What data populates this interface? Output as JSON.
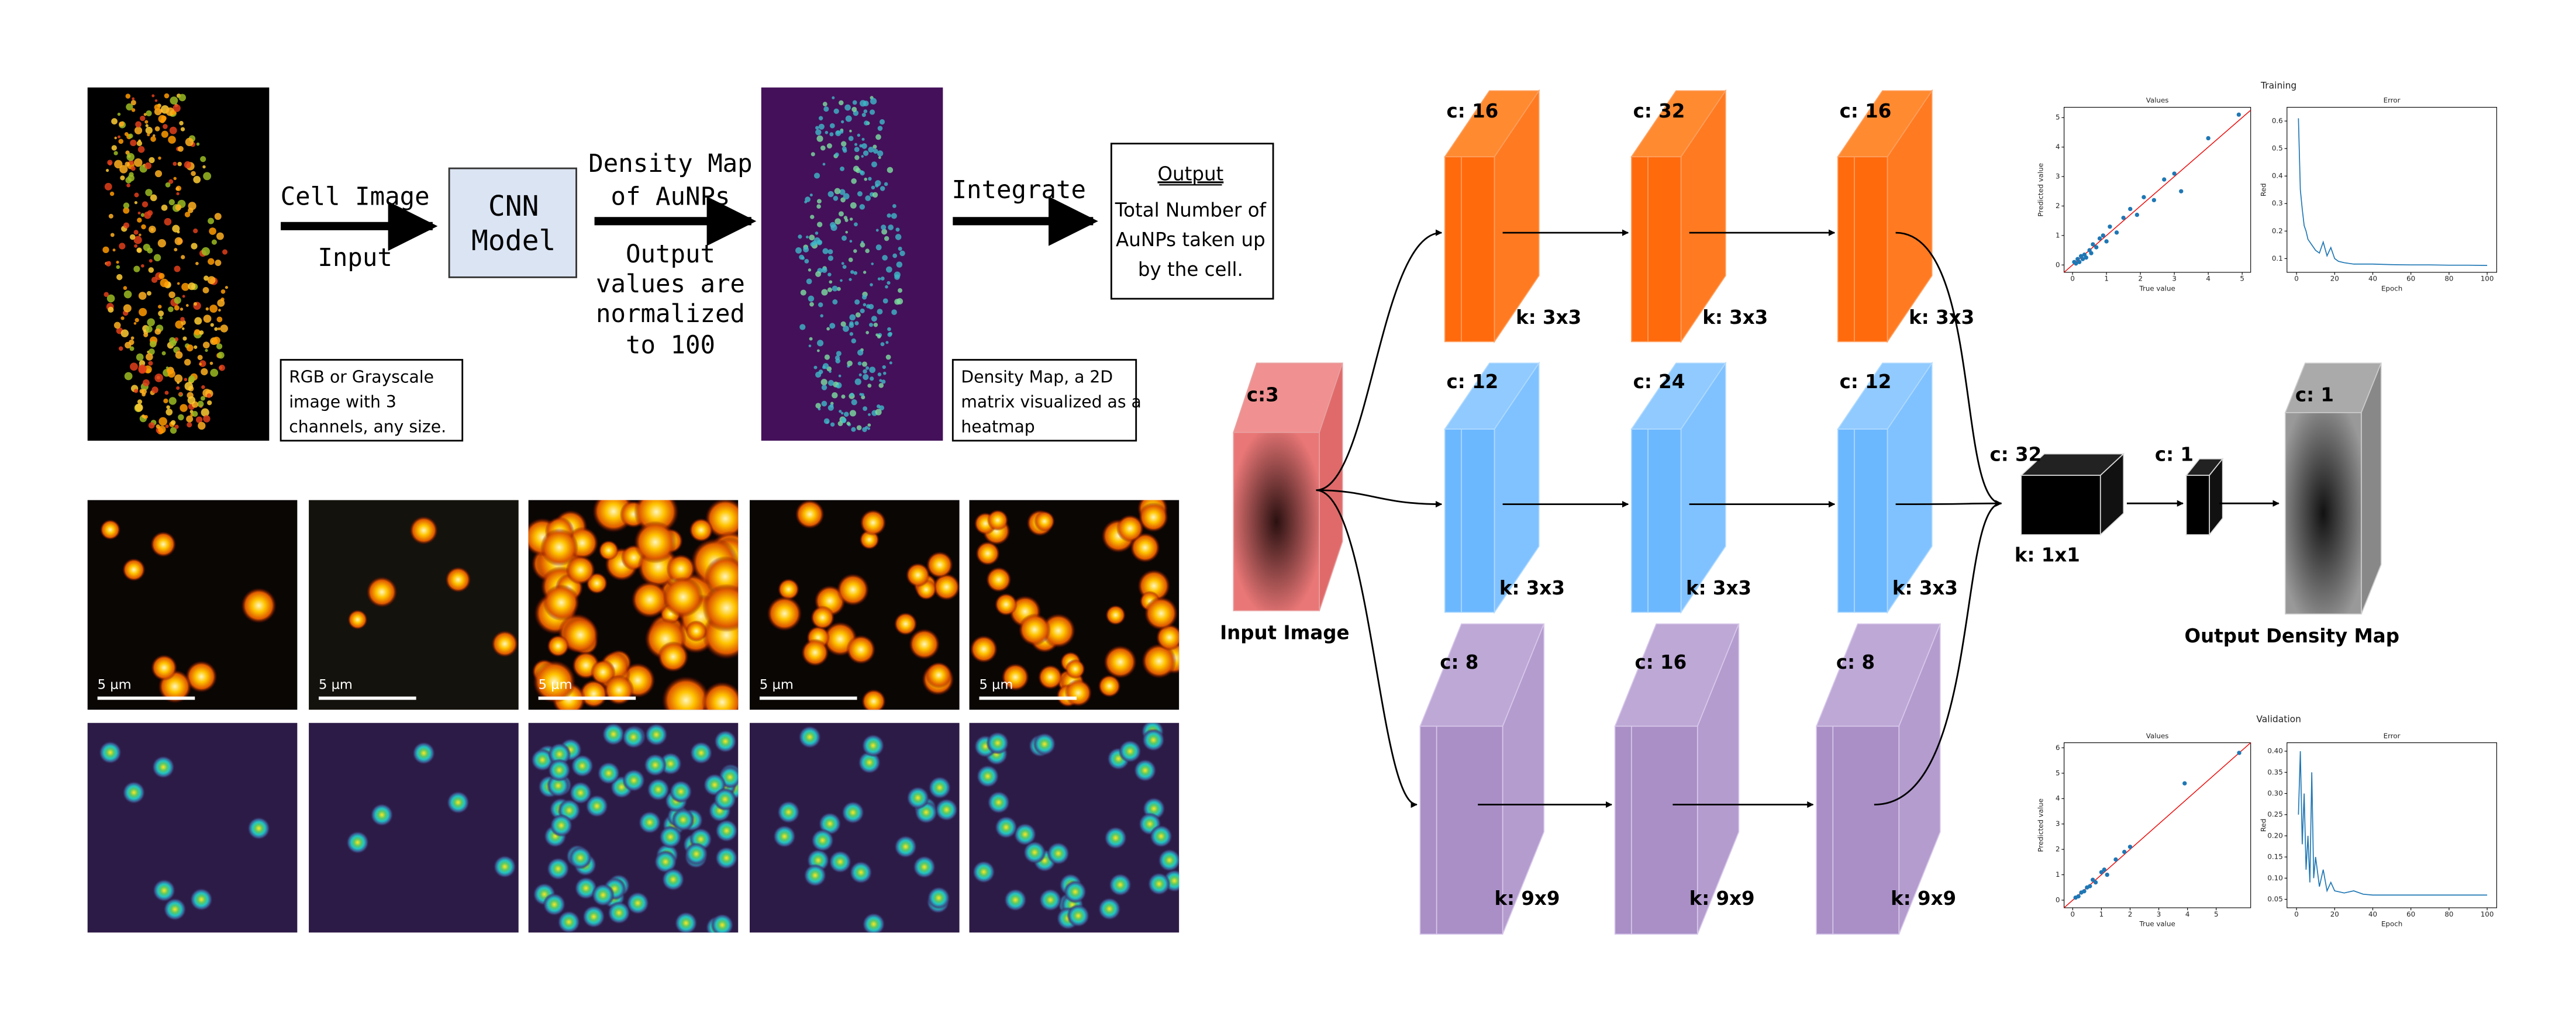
{
  "pipeline": {
    "input_label": "Cell Image",
    "input_sub": "Input",
    "model": [
      "CNN",
      "Model"
    ],
    "density_label": [
      "Density Map",
      "of AuNPs"
    ],
    "density_sub": [
      "Output",
      "values are",
      "normalized",
      "to 100"
    ],
    "integrate": "Integrate",
    "output_title": "Output",
    "output_text": [
      "Total Number of",
      "AuNPs taken up",
      "by the cell."
    ],
    "input_note": [
      "RGB or Grayscale",
      "image with 3",
      "channels, any size."
    ],
    "density_note": [
      "Density Map, a 2D",
      "matrix visualized as a",
      "heatmap"
    ]
  },
  "samples": {
    "scale_bars": [
      "5 µm",
      "5 µm",
      "5 µm",
      "5 µm",
      "5 µm"
    ]
  },
  "network": {
    "input": {
      "channels": "c:3",
      "label": "Input Image"
    },
    "branches": [
      [
        {
          "c": "c: 16",
          "k": "k: 3x3"
        },
        {
          "c": "c: 32",
          "k": "k: 3x3"
        },
        {
          "c": "c: 16",
          "k": "k: 3x3"
        }
      ],
      [
        {
          "c": "c: 12",
          "k": "k: 3x3"
        },
        {
          "c": "c: 24",
          "k": "k: 3x3"
        },
        {
          "c": "c: 12",
          "k": "k: 3x3"
        }
      ],
      [
        {
          "c": "c: 8",
          "k": "k: 9x9"
        },
        {
          "c": "c: 16",
          "k": "k: 9x9"
        },
        {
          "c": "c: 8",
          "k": "k: 9x9"
        }
      ]
    ],
    "merge": {
      "c": "c: 32",
      "k": "k: 1x1"
    },
    "final": {
      "c": "c: 1"
    },
    "output": {
      "c": "c: 1",
      "label": "Output Density Map"
    }
  },
  "plots": [
    {
      "title": "Training",
      "charts": [
        {
          "type": "scatter",
          "title": "Values",
          "x_label": "True value",
          "y_label": "Predicted value",
          "color": "#1f77b4",
          "xlim": [
            -0.25,
            5.25
          ],
          "ylim": [
            -0.25,
            5.35
          ],
          "xticks": [
            0,
            1,
            2,
            3,
            4,
            5
          ],
          "yticks": [
            0,
            1,
            2,
            3,
            4,
            5
          ],
          "x": [
            0.05,
            0.1,
            0.15,
            0.2,
            0.25,
            0.3,
            0.35,
            0.4,
            0.5,
            0.55,
            0.6,
            0.7,
            0.8,
            0.9,
            1.0,
            1.1,
            1.3,
            1.5,
            1.7,
            1.9,
            2.1,
            2.4,
            2.7,
            3.0,
            3.2,
            4.0,
            4.9
          ],
          "values": [
            0.1,
            0.05,
            0.2,
            0.1,
            0.3,
            0.2,
            0.35,
            0.25,
            0.5,
            0.4,
            0.7,
            0.6,
            0.9,
            1.0,
            0.8,
            1.3,
            1.1,
            1.6,
            1.9,
            1.7,
            2.3,
            2.2,
            2.9,
            3.1,
            2.5,
            4.3,
            5.1
          ]
        },
        {
          "type": "line",
          "title": "Error",
          "x_label": "Epoch",
          "y_label": "Red",
          "color": "#1f77b4",
          "xlim": [
            -5,
            105
          ],
          "ylim": [
            0.05,
            0.65
          ],
          "xticks": [
            0,
            20,
            40,
            60,
            80,
            100
          ],
          "yticks": [
            0.1,
            0.2,
            0.3,
            0.4,
            0.5,
            0.6
          ],
          "x": [
            1,
            2,
            3,
            4,
            5,
            6,
            8,
            10,
            12,
            14,
            16,
            18,
            20,
            22,
            25,
            30,
            40,
            50,
            60,
            70,
            80,
            90,
            100
          ],
          "values": [
            0.61,
            0.35,
            0.28,
            0.22,
            0.2,
            0.17,
            0.15,
            0.13,
            0.12,
            0.16,
            0.11,
            0.14,
            0.1,
            0.09,
            0.085,
            0.08,
            0.08,
            0.078,
            0.077,
            0.077,
            0.076,
            0.076,
            0.075
          ]
        }
      ]
    },
    {
      "title": "Validation",
      "charts": [
        {
          "type": "scatter",
          "title": "Values",
          "x_label": "True value",
          "y_label": "Predicted value",
          "color": "#1f77b4",
          "xlim": [
            -0.3,
            6.2
          ],
          "ylim": [
            -0.3,
            6.2
          ],
          "xticks": [
            0,
            1,
            2,
            3,
            4,
            5
          ],
          "yticks": [
            0,
            1,
            2,
            3,
            4,
            5,
            6
          ],
          "x": [
            0.1,
            0.2,
            0.3,
            0.4,
            0.5,
            0.6,
            0.7,
            0.8,
            1.0,
            1.1,
            1.2,
            1.5,
            1.8,
            2.0,
            3.9,
            5.8
          ],
          "values": [
            0.1,
            0.15,
            0.3,
            0.35,
            0.5,
            0.55,
            0.8,
            0.7,
            1.1,
            1.2,
            1.0,
            1.6,
            1.9,
            2.1,
            4.6,
            5.8
          ]
        },
        {
          "type": "line",
          "title": "Error",
          "x_label": "Epoch",
          "y_label": "Red",
          "color": "#1f77b4",
          "xlim": [
            -5,
            105
          ],
          "ylim": [
            0.03,
            0.42
          ],
          "xticks": [
            0,
            20,
            40,
            60,
            80,
            100
          ],
          "yticks": [
            {
              "value": 0.05,
              "label": "0.05"
            },
            {
              "value": 0.1,
              "label": "0.10"
            },
            {
              "value": 0.15,
              "label": "0.15"
            },
            {
              "value": 0.2,
              "label": "0.20"
            },
            {
              "value": 0.25,
              "label": "0.25"
            },
            {
              "value": 0.3,
              "label": "0.30"
            },
            {
              "value": 0.35,
              "label": "0.35"
            },
            {
              "value": 0.4,
              "label": "0.40"
            }
          ],
          "x": [
            1,
            2,
            3,
            4,
            5,
            6,
            7,
            8,
            9,
            10,
            12,
            14,
            16,
            18,
            20,
            25,
            30,
            35,
            40,
            50,
            60,
            80,
            100
          ],
          "values": [
            0.25,
            0.4,
            0.18,
            0.3,
            0.12,
            0.2,
            0.09,
            0.35,
            0.1,
            0.15,
            0.08,
            0.12,
            0.07,
            0.09,
            0.07,
            0.065,
            0.07,
            0.062,
            0.06,
            0.06,
            0.06,
            0.06,
            0.06
          ]
        }
      ]
    }
  ]
}
